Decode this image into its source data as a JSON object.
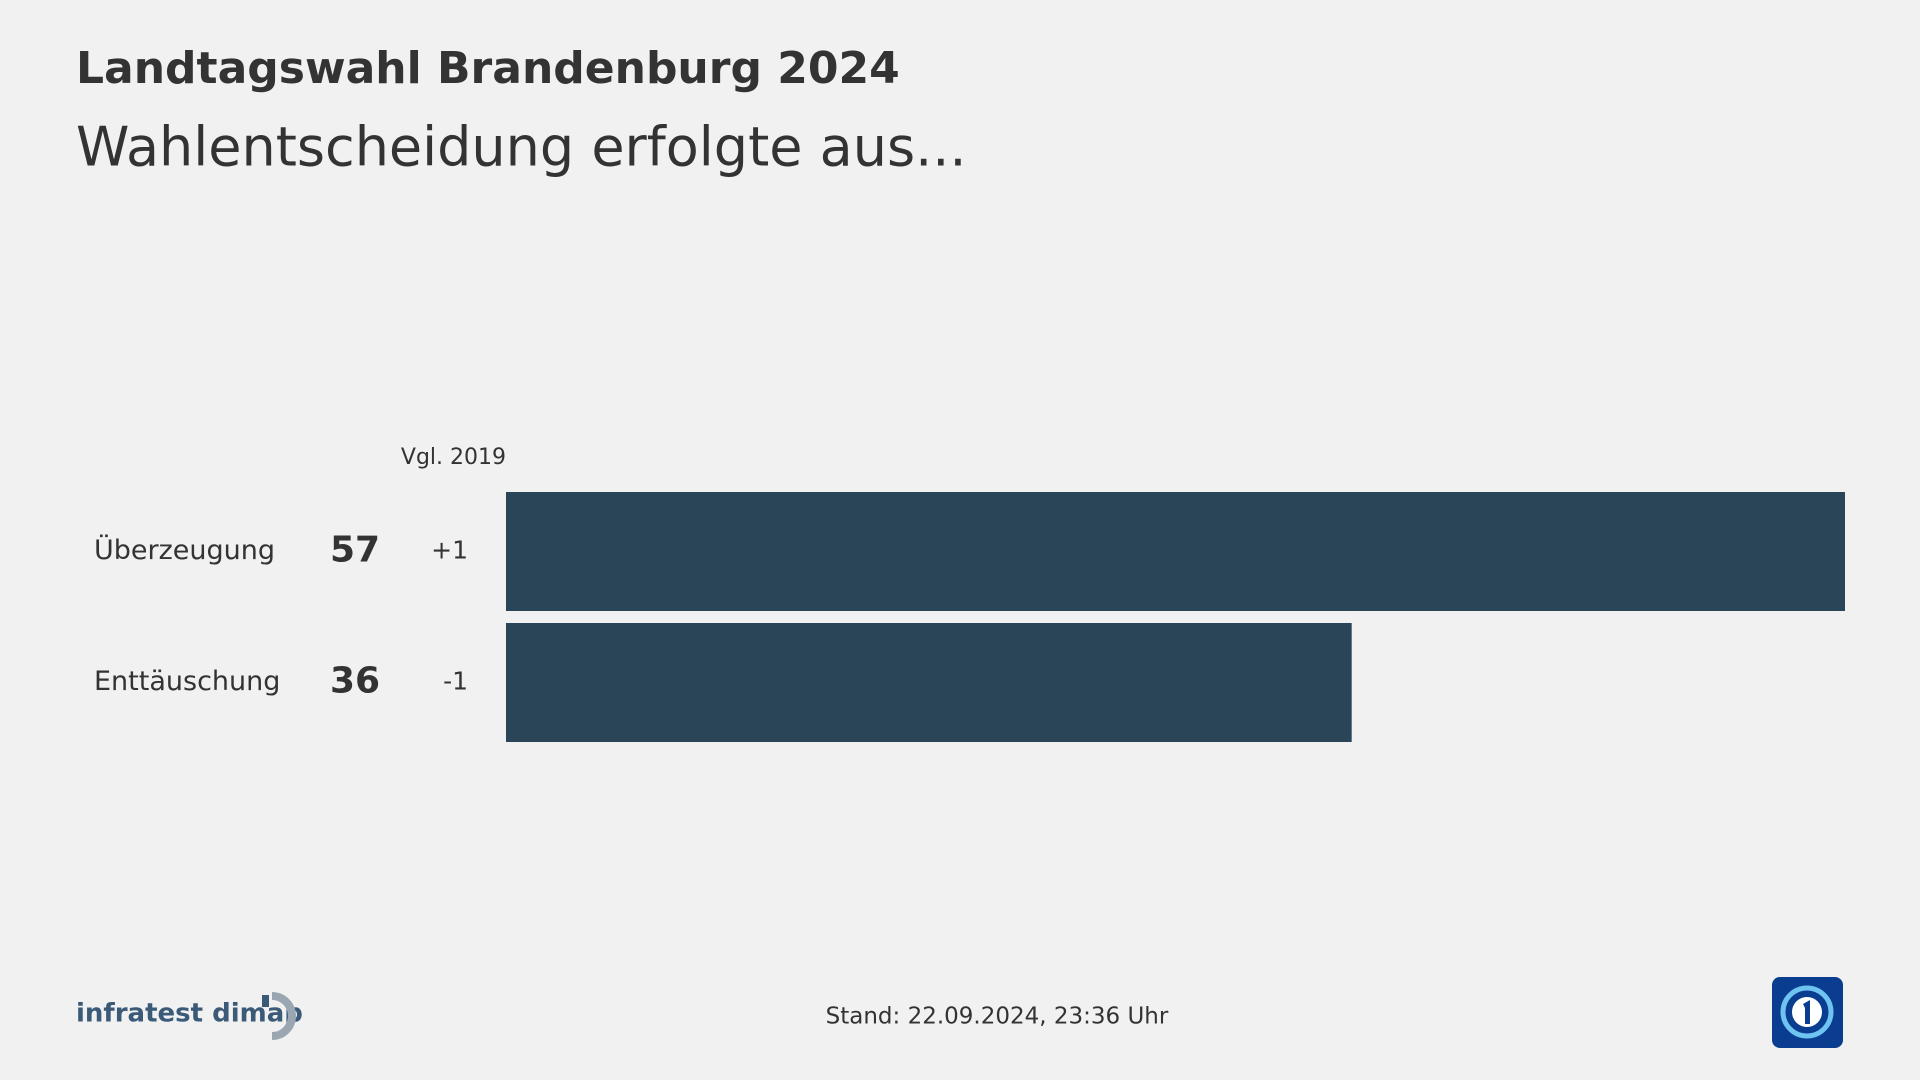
{
  "chart_data": {
    "type": "bar",
    "orientation": "horizontal",
    "title": "Landtagswahl Brandenburg 2024",
    "subtitle": "Wahlentscheidung erfolgte aus...",
    "categories": [
      "Überzeugung",
      "Enttäuschung"
    ],
    "values": [
      57,
      36
    ],
    "color": "#2a4557",
    "changes": {
      "label": "Vgl. 2019",
      "values": [
        1,
        -1
      ],
      "value_labels": [
        "+1",
        "-1"
      ]
    }
  },
  "footer": {
    "source": "infratest dimap",
    "stand": "Stand:  22.09.2024, 23:36 Uhr"
  }
}
